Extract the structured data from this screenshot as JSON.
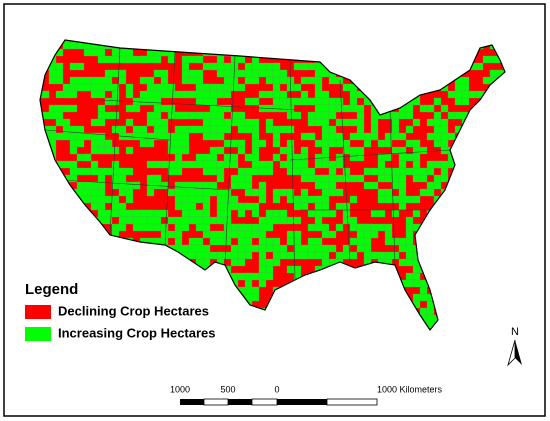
{
  "legend": {
    "title": "Legend",
    "items": [
      {
        "label": "Declining Crop Hectares",
        "color": "#ff0000"
      },
      {
        "label": "Increasing Crop Hectares",
        "color": "#00ff00"
      }
    ]
  },
  "north_arrow": {
    "label": "N"
  },
  "scale_bar": {
    "labels": [
      "1000",
      "500",
      "0",
      "1000 Kilometers"
    ]
  }
}
